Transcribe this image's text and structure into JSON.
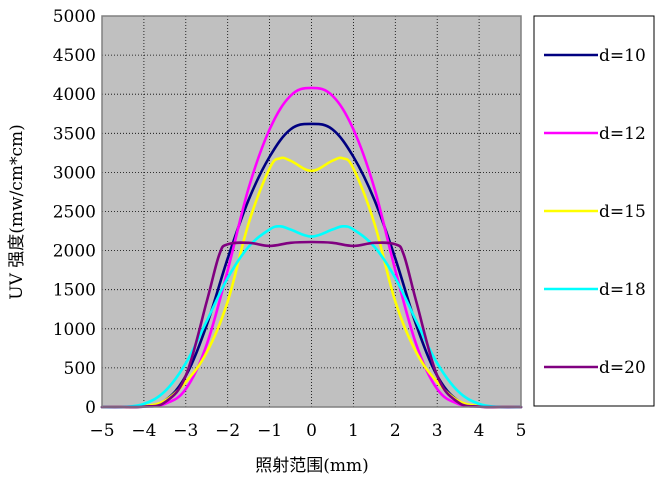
{
  "chart_data": {
    "type": "line",
    "title": "",
    "xlabel": "照射范围(mm)",
    "ylabel": "UV 强度(mw/cm*cm)",
    "xlim": [
      -5,
      5
    ],
    "ylim": [
      0,
      5000
    ],
    "xticks": [
      -5,
      -4,
      -3,
      -2,
      -1,
      0,
      1,
      2,
      3,
      4,
      5
    ],
    "yticks": [
      0,
      500,
      1000,
      1500,
      2000,
      2500,
      3000,
      3500,
      4000,
      4500,
      5000
    ],
    "grid": true,
    "plot_background": "#c0c0c0",
    "legend_position": "right",
    "series": [
      {
        "name": "d=10",
        "color": "#000080",
        "x": [
          -5,
          -4.5,
          -4,
          -3.5,
          -3,
          -2.5,
          -2,
          -1.5,
          -1,
          -0.5,
          0,
          0.5,
          1,
          1.5,
          2,
          2.5,
          3,
          3.5,
          4,
          4.5,
          5
        ],
        "y": [
          0,
          0,
          10,
          80,
          400,
          1050,
          1900,
          2650,
          3200,
          3550,
          3620,
          3550,
          3200,
          2650,
          1900,
          1050,
          400,
          80,
          10,
          0,
          0
        ]
      },
      {
        "name": "d=12",
        "color": "#ff00ff",
        "x": [
          -5,
          -4.5,
          -4,
          -3.5,
          -3,
          -2.5,
          -2,
          -1.5,
          -1,
          -0.5,
          0,
          0.5,
          1,
          1.5,
          2,
          2.5,
          3,
          3.5,
          4,
          4.5,
          5
        ],
        "y": [
          0,
          0,
          5,
          40,
          230,
          800,
          1750,
          2800,
          3550,
          3980,
          4080,
          3980,
          3550,
          2800,
          1750,
          800,
          230,
          40,
          5,
          0,
          0
        ]
      },
      {
        "name": "d=15",
        "color": "#ffff00",
        "x": [
          -5,
          -4.5,
          -4,
          -3.5,
          -3,
          -2.5,
          -2,
          -1.5,
          -1,
          -0.75,
          -0.5,
          0,
          0.5,
          0.75,
          1,
          1.5,
          2,
          2.5,
          3,
          3.5,
          4,
          4.5,
          5
        ],
        "y": [
          0,
          0,
          10,
          80,
          320,
          700,
          1350,
          2350,
          3050,
          3180,
          3150,
          3020,
          3150,
          3180,
          3050,
          2350,
          1350,
          700,
          320,
          80,
          10,
          0,
          0
        ]
      },
      {
        "name": "d=18",
        "color": "#00ffff",
        "x": [
          -5,
          -4.5,
          -4,
          -3.5,
          -3,
          -2.5,
          -2,
          -1.5,
          -1,
          -0.75,
          -0.5,
          0,
          0.5,
          0.75,
          1,
          1.5,
          2,
          2.5,
          3,
          3.5,
          4,
          4.5,
          5
        ],
        "y": [
          0,
          0,
          40,
          200,
          560,
          1100,
          1650,
          2050,
          2270,
          2310,
          2270,
          2180,
          2270,
          2310,
          2270,
          2050,
          1650,
          1100,
          560,
          200,
          40,
          0,
          0
        ]
      },
      {
        "name": "d=20",
        "color": "#800080",
        "x": [
          -5,
          -4.5,
          -4,
          -3.5,
          -3,
          -2.5,
          -2.2,
          -2,
          -1.5,
          -1,
          -0.5,
          0,
          0.5,
          1,
          1.5,
          2,
          2.2,
          2.5,
          3,
          3.5,
          4,
          4.5,
          5
        ],
        "y": [
          0,
          0,
          5,
          60,
          400,
          1350,
          1950,
          2080,
          2100,
          2060,
          2100,
          2110,
          2100,
          2060,
          2100,
          2080,
          1950,
          1350,
          400,
          60,
          5,
          0,
          0
        ]
      }
    ]
  }
}
